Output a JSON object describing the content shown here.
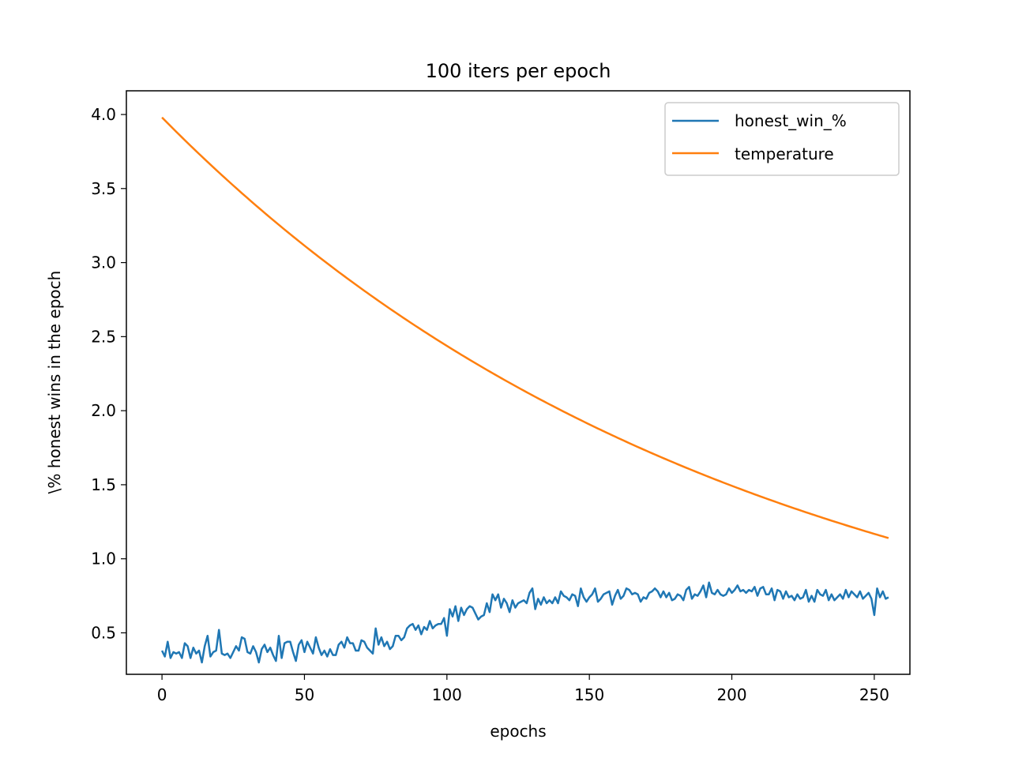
{
  "chart_data": {
    "type": "line",
    "title": "100 iters per epoch",
    "xlabel": "epochs",
    "ylabel": "\\% honest wins in the epoch",
    "xlim": [
      -12.5,
      262.5
    ],
    "ylim": [
      0.22,
      4.16
    ],
    "xticks": [
      0,
      50,
      100,
      150,
      200,
      250
    ],
    "xtick_labels": [
      "0",
      "50",
      "100",
      "150",
      "200",
      "250"
    ],
    "yticks": [
      0.5,
      1.0,
      1.5,
      2.0,
      2.5,
      3.0,
      3.5,
      4.0
    ],
    "ytick_labels": [
      "0.5",
      "1.0",
      "1.5",
      "2.0",
      "2.5",
      "3.0",
      "3.5",
      "4.0"
    ],
    "grid": false,
    "legend_position": "top-right",
    "series": [
      {
        "name": "honest_win_%",
        "color": "#1f77b4",
        "x_start": 0,
        "x_step": 1,
        "values": [
          0.38,
          0.34,
          0.44,
          0.33,
          0.37,
          0.36,
          0.37,
          0.33,
          0.43,
          0.41,
          0.33,
          0.4,
          0.36,
          0.38,
          0.3,
          0.41,
          0.48,
          0.34,
          0.37,
          0.38,
          0.52,
          0.36,
          0.35,
          0.36,
          0.33,
          0.37,
          0.41,
          0.38,
          0.47,
          0.46,
          0.37,
          0.36,
          0.41,
          0.37,
          0.3,
          0.39,
          0.42,
          0.37,
          0.4,
          0.35,
          0.31,
          0.48,
          0.33,
          0.43,
          0.44,
          0.44,
          0.37,
          0.31,
          0.42,
          0.45,
          0.37,
          0.44,
          0.4,
          0.36,
          0.47,
          0.4,
          0.35,
          0.38,
          0.34,
          0.39,
          0.35,
          0.35,
          0.42,
          0.44,
          0.4,
          0.47,
          0.43,
          0.43,
          0.38,
          0.38,
          0.45,
          0.44,
          0.4,
          0.38,
          0.36,
          0.53,
          0.42,
          0.47,
          0.41,
          0.44,
          0.39,
          0.41,
          0.48,
          0.48,
          0.45,
          0.47,
          0.53,
          0.55,
          0.56,
          0.52,
          0.55,
          0.49,
          0.54,
          0.52,
          0.58,
          0.53,
          0.55,
          0.56,
          0.56,
          0.6,
          0.48,
          0.66,
          0.61,
          0.68,
          0.58,
          0.67,
          0.62,
          0.66,
          0.68,
          0.67,
          0.63,
          0.59,
          0.61,
          0.62,
          0.7,
          0.64,
          0.76,
          0.72,
          0.76,
          0.67,
          0.73,
          0.7,
          0.64,
          0.72,
          0.67,
          0.7,
          0.71,
          0.72,
          0.7,
          0.77,
          0.8,
          0.66,
          0.73,
          0.69,
          0.74,
          0.7,
          0.72,
          0.7,
          0.74,
          0.7,
          0.78,
          0.75,
          0.74,
          0.72,
          0.76,
          0.75,
          0.68,
          0.8,
          0.74,
          0.71,
          0.74,
          0.76,
          0.8,
          0.71,
          0.73,
          0.76,
          0.77,
          0.78,
          0.69,
          0.75,
          0.79,
          0.73,
          0.75,
          0.8,
          0.79,
          0.76,
          0.77,
          0.76,
          0.71,
          0.74,
          0.73,
          0.77,
          0.78,
          0.8,
          0.78,
          0.74,
          0.78,
          0.74,
          0.77,
          0.72,
          0.73,
          0.76,
          0.75,
          0.72,
          0.79,
          0.81,
          0.73,
          0.76,
          0.75,
          0.78,
          0.82,
          0.74,
          0.84,
          0.77,
          0.76,
          0.79,
          0.76,
          0.75,
          0.76,
          0.8,
          0.77,
          0.79,
          0.82,
          0.78,
          0.79,
          0.77,
          0.79,
          0.78,
          0.81,
          0.75,
          0.8,
          0.81,
          0.76,
          0.76,
          0.8,
          0.72,
          0.79,
          0.78,
          0.73,
          0.78,
          0.74,
          0.75,
          0.72,
          0.76,
          0.73,
          0.74,
          0.79,
          0.71,
          0.75,
          0.71,
          0.79,
          0.76,
          0.75,
          0.79,
          0.72,
          0.76,
          0.72,
          0.74,
          0.76,
          0.73,
          0.79,
          0.74,
          0.78,
          0.76,
          0.74,
          0.78,
          0.73,
          0.75,
          0.77,
          0.73,
          0.62,
          0.8,
          0.74,
          0.78,
          0.73,
          0.74
        ]
      },
      {
        "name": "temperature",
        "color": "#ff7f0e",
        "x_start": 0,
        "x_step": 1,
        "decay": "exponential",
        "y_start": 3.98,
        "y_end": 1.14
      }
    ]
  }
}
